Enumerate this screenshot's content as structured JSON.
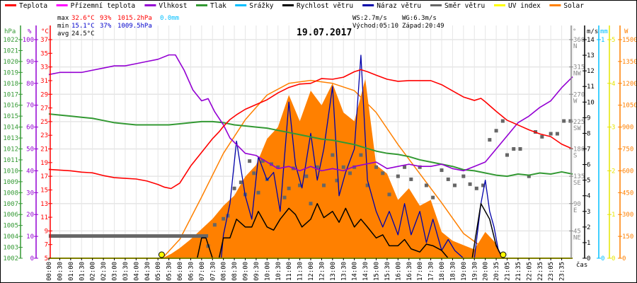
{
  "chart_data": {
    "type": "line",
    "title": "19.07.2017",
    "xlabel": "čas",
    "legend": {
      "placement": "top",
      "items": [
        {
          "name": "Teplota",
          "color": "#ff0000"
        },
        {
          "name": "Přízemní teplota",
          "color": "#ff00ff"
        },
        {
          "name": "Vlhkost",
          "color": "#9400d3"
        },
        {
          "name": "Tlak",
          "color": "#339933"
        },
        {
          "name": "Srážky",
          "color": "#00bfff"
        },
        {
          "name": "Rychlost větru",
          "color": "#000000"
        },
        {
          "name": "Náraz větru",
          "color": "#0000aa"
        },
        {
          "name": "Směr větru",
          "color": "#666666"
        },
        {
          "name": "UV index",
          "color": "#ffff00"
        },
        {
          "name": "Solar",
          "color": "#ff8000"
        }
      ]
    },
    "stats": {
      "max_label": "max",
      "max_temp": "32.6°C",
      "max_hum": "93%",
      "max_press": "1015.2hPa",
      "rain": "0.0mm",
      "min_label": "min",
      "min_temp": "15.1°C",
      "min_hum": "37%",
      "min_press": "1009.5hPa",
      "avg_label": "avg",
      "avg_temp": "24.5°C",
      "ws": "WS:2.7m/s",
      "wg": "WG:6.3m/s",
      "sunrise": "Východ:05:10",
      "sunset": "Západ:20:49"
    },
    "x_ticks": [
      "00:00",
      "00:30",
      "01:00",
      "01:30",
      "02:00",
      "02:30",
      "03:00",
      "03:30",
      "04:00",
      "04:30",
      "05:00",
      "05:30",
      "06:00",
      "06:30",
      "07:00",
      "07:30",
      "08:00",
      "08:30",
      "09:00",
      "09:30",
      "10:00",
      "10:30",
      "11:00",
      "11:30",
      "12:00",
      "12:30",
      "13:00",
      "13:30",
      "14:00",
      "14:30",
      "15:00",
      "15:30",
      "16:00",
      "16:30",
      "17:00",
      "17:30",
      "18:00",
      "18:30",
      "19:00",
      "19:30",
      "20:00",
      "20:35",
      "21:05",
      "21:35",
      "22:05",
      "22:35",
      "23:05",
      "23:35"
    ],
    "axes": {
      "pressure": {
        "unit": "hPa",
        "range": [
          1002,
          1022
        ],
        "ticks": [
          1022,
          1021,
          1020,
          1019,
          1018,
          1017,
          1016,
          1015,
          1014,
          1013,
          1012,
          1011,
          1010,
          1009,
          1008,
          1007,
          1006,
          1005,
          1004,
          1003,
          1002
        ],
        "color": "#339933"
      },
      "humidity": {
        "unit": "%",
        "range": [
          0,
          100
        ],
        "ticks": [
          100,
          90,
          80,
          70,
          60,
          50,
          40,
          30,
          20,
          10,
          0
        ],
        "color": "#9400d3"
      },
      "temperature": {
        "unit": "°C",
        "range": [
          5,
          37
        ],
        "ticks": [
          37,
          35,
          33,
          31,
          29,
          27,
          25,
          23,
          21,
          19,
          17,
          15,
          13,
          11,
          9,
          7,
          5
        ],
        "color": "#ff0000"
      },
      "direction": {
        "unit": "°",
        "range": [
          0,
          360
        ],
        "ticks": [
          {
            "v": 360,
            "l": "N"
          },
          {
            "v": 315,
            "l": "NW"
          },
          {
            "v": 270,
            "l": "W"
          },
          {
            "v": 225,
            "l": "SW"
          },
          {
            "v": 180,
            "l": "S"
          },
          {
            "v": 135,
            "l": "SE"
          },
          {
            "v": 90,
            "l": "E"
          },
          {
            "v": 45,
            "l": "NE"
          }
        ],
        "color": "#666666"
      },
      "wind": {
        "unit": "m/s",
        "range": [
          0,
          14
        ],
        "ticks": [
          14,
          13,
          12,
          11,
          10,
          9,
          8,
          7,
          6,
          5,
          4,
          3,
          2,
          1,
          0
        ],
        "color": "#000000"
      },
      "rain": {
        "unit": "mm",
        "range": [
          0,
          1
        ],
        "ticks": [
          1,
          0
        ],
        "color": "#00bfff"
      },
      "uv": {
        "unit": "",
        "range": [
          0,
          5
        ],
        "ticks": [
          5,
          4,
          3,
          2,
          1,
          0
        ],
        "color": "#ffff00"
      },
      "solar": {
        "unit": "W",
        "range": [
          0,
          1500
        ],
        "ticks": [
          1500,
          1350,
          1200,
          1050,
          900,
          750,
          600,
          450,
          300,
          150,
          0
        ],
        "color": "#ff8000"
      }
    },
    "series": [
      {
        "name": "Teplota",
        "axis": "temperature",
        "x_hours": [
          0,
          0.5,
          1,
          1.5,
          2,
          2.5,
          3,
          3.5,
          4,
          4.5,
          5,
          5.3,
          5.6,
          6,
          6.5,
          7,
          7.5,
          7.8,
          8,
          8.3,
          8.6,
          9,
          9.5,
          10,
          10.5,
          11,
          11.5,
          12,
          12.5,
          13,
          13.5,
          14,
          14.3,
          14.6,
          15,
          15.5,
          16,
          16.5,
          17,
          17.5,
          18,
          18.5,
          19,
          19.5,
          19.8,
          20,
          20.5,
          21,
          21.5,
          22,
          22.5,
          23,
          23.5,
          24
        ],
        "values": [
          18.0,
          17.9,
          17.8,
          17.6,
          17.5,
          17.1,
          16.8,
          16.7,
          16.6,
          16.3,
          15.8,
          15.4,
          15.2,
          16.0,
          18.5,
          20.5,
          22.5,
          23.5,
          24.3,
          25.3,
          26.0,
          26.8,
          27.5,
          28.2,
          29.2,
          30.0,
          30.5,
          30.6,
          31.3,
          31.2,
          31.5,
          32.3,
          32.6,
          32.3,
          31.8,
          31.2,
          30.9,
          31.0,
          31.0,
          31.0,
          30.4,
          29.5,
          28.6,
          28.1,
          28.4,
          27.9,
          26.5,
          25.2,
          24.5,
          23.8,
          23.2,
          22.8,
          21.7,
          21.0
        ]
      },
      {
        "name": "Vlhkost",
        "axis": "humidity",
        "x_hours": [
          0,
          0.5,
          1,
          1.5,
          2,
          2.5,
          3,
          3.5,
          4,
          4.5,
          5,
          5.5,
          5.8,
          6.2,
          6.6,
          7,
          7.3,
          7.6,
          8,
          8.3,
          8.6,
          9,
          9.5,
          10,
          10.5,
          11,
          11.5,
          12,
          12.5,
          13,
          13.5,
          14,
          14.5,
          15,
          15.5,
          16,
          16.5,
          17,
          17.5,
          18,
          18.5,
          19,
          19.5,
          20,
          20.5,
          21,
          21.5,
          22,
          22.5,
          23,
          23.5,
          24
        ],
        "values": [
          84,
          85,
          85,
          85,
          86,
          87,
          88,
          88,
          89,
          90,
          91,
          93,
          93,
          86,
          77,
          72,
          73,
          67,
          61,
          55,
          52,
          48,
          47,
          44,
          41,
          42,
          40,
          42,
          40,
          41,
          40,
          42,
          43,
          44,
          41,
          42,
          43,
          42,
          42,
          43,
          41,
          40,
          42,
          44,
          50,
          56,
          62,
          65,
          69,
          72,
          78,
          83
        ]
      },
      {
        "name": "Tlak",
        "axis": "pressure",
        "x_hours": [
          0,
          0.5,
          1,
          1.5,
          2,
          2.5,
          3,
          3.5,
          4,
          4.5,
          5,
          5.5,
          6,
          6.5,
          7,
          7.5,
          8,
          8.5,
          9,
          9.5,
          10,
          10.5,
          11,
          11.5,
          12,
          12.5,
          13,
          13.5,
          14,
          14.5,
          15,
          15.5,
          16,
          16.5,
          17,
          17.5,
          18,
          18.5,
          19,
          19.5,
          20,
          20.5,
          21,
          21.5,
          22,
          22.5,
          23,
          23.5,
          24
        ],
        "values": [
          1015.2,
          1015.1,
          1015.0,
          1014.9,
          1014.8,
          1014.6,
          1014.4,
          1014.3,
          1014.2,
          1014.2,
          1014.2,
          1014.2,
          1014.3,
          1014.4,
          1014.5,
          1014.5,
          1014.4,
          1014.2,
          1014.1,
          1014.0,
          1013.9,
          1013.7,
          1013.5,
          1013.3,
          1013.1,
          1012.9,
          1012.8,
          1012.6,
          1012.4,
          1012.1,
          1011.8,
          1011.6,
          1011.5,
          1011.3,
          1011.0,
          1010.8,
          1010.6,
          1010.4,
          1010.1,
          1010.0,
          1009.8,
          1009.6,
          1009.5,
          1009.7,
          1009.6,
          1009.8,
          1009.7,
          1009.9,
          1009.7
        ]
      },
      {
        "name": "Rychlost větru",
        "axis": "wind",
        "x_hours": [
          0,
          6.8,
          7.0,
          7.2,
          7.5,
          7.8,
          8.0,
          8.3,
          8.6,
          9.0,
          9.3,
          9.6,
          10.0,
          10.3,
          10.6,
          11.0,
          11.3,
          11.6,
          12.0,
          12.3,
          12.6,
          13.0,
          13.3,
          13.6,
          14.0,
          14.3,
          14.6,
          15.0,
          15.3,
          15.6,
          16.0,
          16.3,
          16.6,
          17.0,
          17.3,
          17.6,
          18.0,
          18.3,
          18.6,
          19.0,
          19.4,
          19.8,
          20.2,
          20.5,
          20.8,
          21.0,
          24
        ],
        "values": [
          0,
          0,
          1.3,
          1.3,
          0,
          0,
          1.3,
          1.3,
          2.5,
          2.0,
          2.0,
          3.0,
          2.0,
          1.8,
          2.5,
          3.2,
          2.8,
          2.0,
          2.5,
          3.5,
          2.6,
          3.0,
          2.3,
          3.2,
          2.0,
          2.5,
          2.0,
          1.3,
          1.5,
          0.8,
          0.8,
          1.2,
          0.6,
          0.4,
          0.9,
          0.8,
          0.5,
          0,
          0,
          0,
          0,
          3.5,
          2.5,
          0.8,
          0,
          0,
          0
        ]
      },
      {
        "name": "Náraz větru",
        "axis": "wind",
        "x_hours": [
          0,
          7.9,
          8.0,
          8.3,
          8.6,
          9.0,
          9.3,
          9.6,
          10.0,
          10.3,
          10.6,
          11.0,
          11.3,
          11.6,
          12.0,
          12.3,
          12.6,
          13.0,
          13.3,
          13.6,
          14.0,
          14.3,
          14.6,
          15.0,
          15.3,
          15.6,
          16.0,
          16.3,
          16.6,
          17.0,
          17.3,
          17.6,
          18.0,
          18.3,
          18.6,
          19.0,
          19.5,
          19.8,
          20.0,
          20.2,
          20.4,
          20.6,
          20.8,
          21.0,
          24
        ],
        "values": [
          0,
          0,
          1.5,
          3.5,
          7.5,
          4.0,
          2.5,
          6.5,
          5.0,
          5.5,
          3.0,
          10.0,
          6.0,
          4.5,
          8.0,
          5.0,
          7.0,
          11.0,
          4.0,
          5.5,
          7.0,
          13.0,
          5.0,
          3.0,
          2.0,
          3.0,
          1.5,
          3.5,
          1.5,
          3.0,
          1.0,
          2.5,
          0.5,
          1.2,
          0.5,
          0,
          0,
          3.5,
          5.0,
          3.0,
          2.0,
          0.5,
          0,
          0,
          0
        ]
      },
      {
        "name": "Solar",
        "axis": "solar",
        "x_hours": [
          0,
          5.2,
          5.6,
          6.0,
          6.5,
          7.0,
          7.5,
          8.0,
          8.5,
          9.0,
          9.5,
          10.0,
          10.5,
          11.0,
          11.5,
          12.0,
          12.5,
          13.0,
          13.5,
          14.0,
          14.5,
          15.0,
          15.5,
          16.0,
          16.5,
          17.0,
          17.5,
          18.0,
          18.5,
          19.0,
          19.5,
          20.0,
          20.5,
          20.8,
          24
        ],
        "values": [
          0,
          0,
          30,
          70,
          130,
          200,
          270,
          360,
          430,
          560,
          640,
          820,
          900,
          1120,
          940,
          1150,
          1050,
          1200,
          1000,
          940,
          1230,
          640,
          580,
          400,
          480,
          360,
          400,
          180,
          120,
          90,
          60,
          180,
          100,
          0,
          0
        ]
      },
      {
        "name": "Solar_theoretical",
        "axis": "solar",
        "x_hours": [
          5.2,
          6,
          7,
          8,
          9,
          10,
          11,
          12,
          13,
          14,
          15,
          16,
          17,
          18,
          19,
          20,
          20.8
        ],
        "values": [
          0,
          130,
          420,
          720,
          950,
          1120,
          1200,
          1220,
          1200,
          1150,
          1000,
          780,
          580,
          380,
          170,
          60,
          0
        ]
      },
      {
        "name": "UV index",
        "axis": "uv",
        "x_hours": [
          0,
          24
        ],
        "values": [
          0,
          0
        ]
      },
      {
        "name": "Směr větru",
        "axis": "direction",
        "type": "scatter",
        "x_hours": [
          0,
          0.5,
          1,
          1.5,
          2,
          2.5,
          3,
          3.5,
          4,
          4.5,
          5,
          5.5,
          6,
          6.5,
          7,
          7.3,
          7.6,
          8.0,
          8.2,
          8.5,
          8.8,
          9.0,
          9.2,
          9.4,
          9.6,
          9.8,
          10.0,
          10.2,
          10.5,
          10.8,
          11.0,
          11.2,
          11.5,
          11.8,
          12.0,
          12.3,
          12.6,
          13.0,
          13.2,
          13.5,
          13.8,
          14.0,
          14.3,
          14.6,
          15.0,
          15.3,
          15.6,
          16.0,
          16.3,
          16.6,
          17.0,
          17.3,
          17.6,
          18.0,
          18.3,
          18.6,
          19.0,
          19.3,
          19.6,
          19.9,
          20.2,
          20.5,
          20.8,
          21.0,
          21.3,
          21.6,
          22.0,
          22.3,
          22.6,
          23.0,
          23.3,
          23.6,
          23.9
        ],
        "values": [
          36,
          36,
          36,
          36,
          36,
          36,
          36,
          36,
          36,
          36,
          36,
          36,
          36,
          36,
          36,
          20,
          55,
          65,
          70,
          115,
          125,
          105,
          160,
          140,
          108,
          160,
          130,
          155,
          150,
          100,
          115,
          148,
          120,
          135,
          90,
          150,
          120,
          170,
          128,
          150,
          140,
          150,
          170,
          120,
          150,
          140,
          105,
          135,
          150,
          130,
          150,
          120,
          100,
          145,
          130,
          120,
          135,
          122,
          115,
          120,
          195,
          210,
          226,
          170,
          180,
          180,
          135,
          208,
          200,
          205,
          205,
          226,
          226
        ]
      }
    ],
    "sun_markers": [
      {
        "label": "sunrise",
        "x_hours": 5.17
      },
      {
        "label": "sunset",
        "x_hours": 20.82
      }
    ]
  }
}
